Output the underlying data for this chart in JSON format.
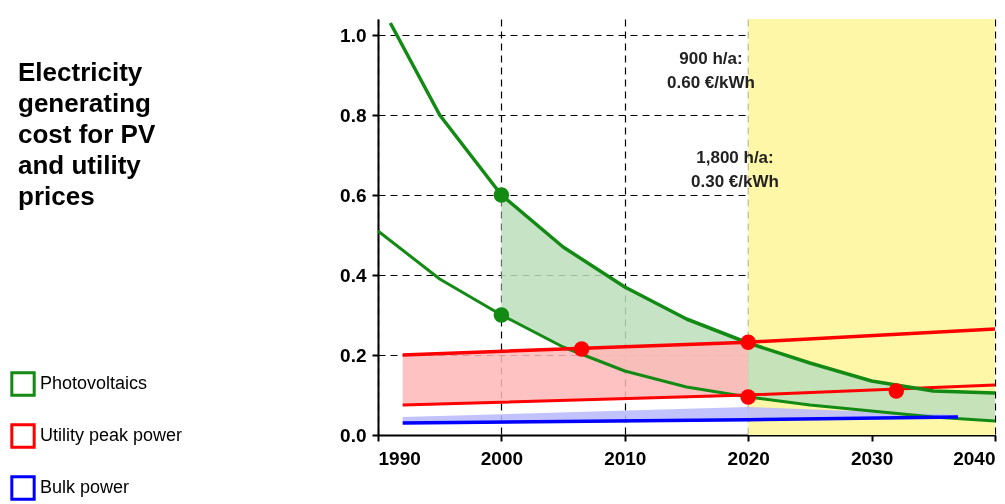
{
  "chart_data": {
    "type": "line",
    "title": "Electricity generating cost for PV and utility prices",
    "xlim": [
      1990,
      2040
    ],
    "xticks": [
      1990,
      2000,
      2010,
      2020,
      2030,
      2040
    ],
    "ylim": [
      0,
      1.04
    ],
    "yticks": [
      {
        "value": 0,
        "label": "0.0"
      },
      {
        "value": 0.2,
        "label": "0.2"
      },
      {
        "value": 0.4,
        "label": "0.4"
      },
      {
        "value": 0.6,
        "label": "0.6"
      },
      {
        "value": 0.8,
        "label": "0.8"
      },
      {
        "value": 1.0,
        "label": "1.0"
      }
    ],
    "grid": true,
    "line_style": "solid",
    "legend": "bottom left",
    "bands": [
      {
        "axis": "x",
        "from": 2020,
        "to": 2040,
        "color": "#fff7a8"
      }
    ],
    "series": [
      {
        "name": "Photovoltaics",
        "color": "#138a13",
        "x": [
          1991,
          1995,
          2000,
          2005,
          2010,
          2015,
          2020,
          2025,
          2030,
          2035,
          2040
        ],
        "values": [
          1.03,
          0.8,
          0.6,
          0.47,
          0.37,
          0.29,
          0.23,
          0.18,
          0.135,
          0.11,
          0.105
        ],
        "lower": [
          null,
          null,
          0.3,
          0.22,
          0.16,
          0.12,
          0.095,
          0.075,
          0.06,
          0.045,
          0.035
        ],
        "upper": [
          null,
          null,
          0.6,
          0.47,
          0.37,
          0.29,
          0.23,
          0.18,
          0.135,
          0.11,
          0.105
        ]
      },
      {
        "color": "#138a13",
        "x": [
          1990,
          1995,
          2000,
          2005,
          2010,
          2015,
          2020,
          2025,
          2030,
          2035,
          2040
        ],
        "values": [
          0.51,
          0.39,
          0.3,
          0.22,
          0.16,
          0.12,
          0.095,
          0.075,
          0.06,
          0.045,
          0.035
        ]
      },
      {
        "name": "Utility peak power",
        "color": "#ff0000",
        "x": [
          1992,
          2020,
          2040
        ],
        "values": [
          0.2,
          0.232,
          0.265
        ],
        "lower": [
          0.075,
          0.1,
          null
        ],
        "upper": [
          0.2,
          0.232,
          null
        ]
      },
      {
        "color": "#ff0000",
        "x": [
          1992,
          2020,
          2040
        ],
        "values": [
          0.075,
          0.1,
          0.125
        ]
      },
      {
        "name": "Bulk power",
        "color": "#0000ff",
        "x": [
          1992,
          2020,
          2037
        ],
        "values": [
          0.03,
          0.038,
          0.045
        ],
        "lower": [
          0.03,
          0.038,
          0.045
        ],
        "upper": [
          0.045,
          0.07,
          0.05
        ]
      },
      {
        "type": "scatter",
        "color": "#ff0000",
        "x": [
          2006.5,
          2020,
          2020,
          2032
        ],
        "values": [
          0.215,
          0.232,
          0.095,
          0.11
        ]
      },
      {
        "type": "scatter",
        "color": "#138a13",
        "x": [
          2000,
          2000
        ],
        "values": [
          0.6,
          0.3
        ]
      }
    ],
    "annotations": [
      "900 h/a:\n0.60 €/kWh",
      "1,800 h/a:\n0.30 €/kWh"
    ]
  }
}
